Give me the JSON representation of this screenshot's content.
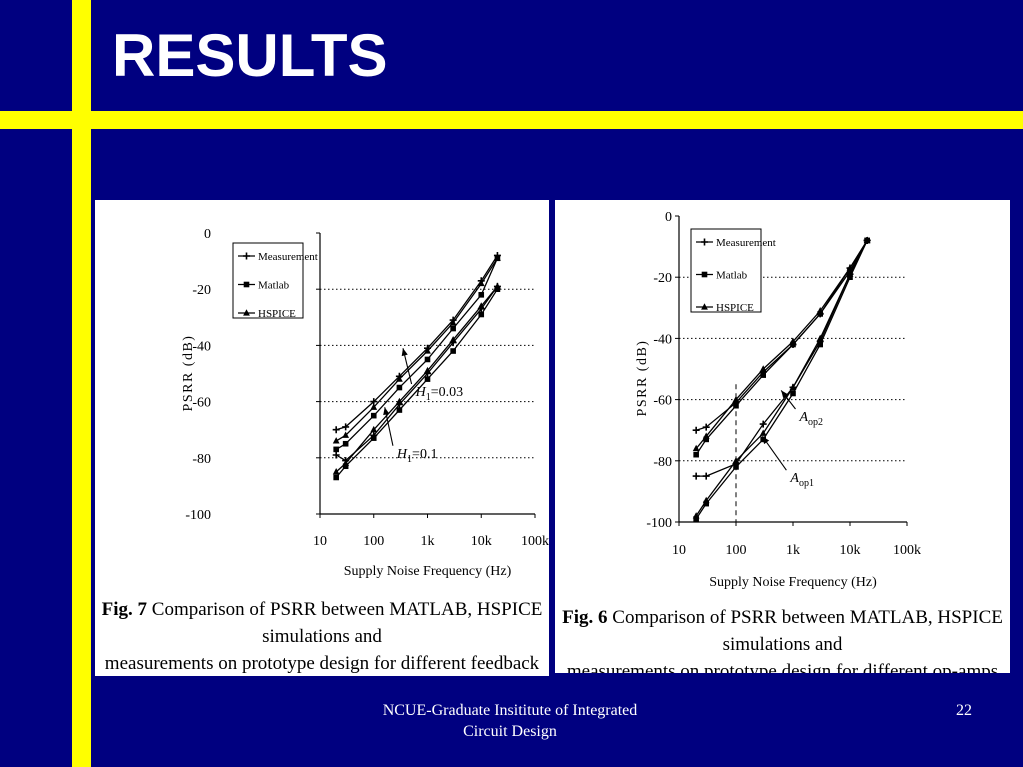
{
  "slide": {
    "title": "RESULTS",
    "footer": [
      "NCUE-Graduate Insititute of Integrated",
      "Circuit Design"
    ],
    "page_number": "22",
    "colors": {
      "background": "#000080",
      "accent_bars": "#ffff00",
      "text": "#ffffff"
    }
  },
  "figures": [
    {
      "caption_label": "Fig. 7",
      "caption_text": " Comparison of PSRR between MATLAB, HSPICE simulations and",
      "caption_line2": "measurements on prototype design for different feedback factors",
      "annotations": [
        {
          "prefix": "H",
          "sub": "1",
          "suffix": "=0.03",
          "x": 600,
          "y": -58,
          "ax": 350,
          "ay": -41
        },
        {
          "prefix": "H",
          "sub": "1",
          "suffix": "=0.1",
          "x": 270,
          "y": -80,
          "ax": 160,
          "ay": -62
        }
      ]
    },
    {
      "caption_label": "Fig. 6",
      "caption_text": " Comparison of PSRR between MATLAB, HSPICE simulations and",
      "caption_line2": "measurements on prototype design for different op-amps",
      "annotations": [
        {
          "prefix": "A",
          "sub": "op2",
          "suffix": "",
          "x": 1300,
          "y": -67,
          "ax": 620,
          "ay": -57
        },
        {
          "prefix": "A",
          "sub": "op1",
          "suffix": "",
          "x": 900,
          "y": -87,
          "ax": 290,
          "ay": -72
        }
      ]
    }
  ],
  "chart_data": [
    {
      "type": "line",
      "x_scale": "log",
      "xlim": [
        10,
        100000
      ],
      "ylim": [
        -100,
        0
      ],
      "xticks": [
        10,
        100,
        1000,
        10000,
        100000
      ],
      "xtick_labels": [
        "10",
        "100",
        "1k",
        "10k",
        "100k"
      ],
      "yticks": [
        0,
        -20,
        -40,
        -60,
        -80,
        -100
      ],
      "ytick_labels": [
        "0",
        "-20",
        "-40",
        "-60",
        "-80",
        "-100"
      ],
      "xlabel": "Supply Noise Frequency (Hz)",
      "ylabel": "PSRR (dB)",
      "grid": "horizontal dotted",
      "legend": "top-left",
      "series": [
        {
          "name": "Measurement",
          "marker": "plus",
          "x": [
            20,
            30,
            100,
            300,
            1000,
            3000,
            10000,
            20000
          ],
          "y": [
            -70,
            -69,
            -60,
            -51,
            -41,
            -31,
            -17,
            -8
          ]
        },
        {
          "name": "Matlab",
          "marker": "square",
          "x": [
            20,
            30,
            100,
            300,
            1000,
            3000,
            10000,
            20000
          ],
          "y": [
            -77,
            -75,
            -65,
            -55,
            -45,
            -34,
            -22,
            -9
          ]
        },
        {
          "name": "HSPICE",
          "marker": "triangle",
          "x": [
            20,
            30,
            100,
            300,
            1000,
            3000,
            10000,
            20000
          ],
          "y": [
            -74,
            -72,
            -62,
            -52,
            -42,
            -32,
            -18,
            -9
          ]
        },
        {
          "name": "",
          "marker": "plus",
          "x": [
            20,
            30,
            100,
            300,
            1000,
            3000,
            10000,
            20000
          ],
          "y": [
            -79,
            -81,
            -72,
            -61,
            -50,
            -39,
            -27,
            -19
          ]
        },
        {
          "name": "",
          "marker": "square",
          "x": [
            20,
            30,
            100,
            300,
            1000,
            3000,
            10000,
            20000
          ],
          "y": [
            -87,
            -83,
            -73,
            -63,
            -52,
            -42,
            -29,
            -20
          ]
        },
        {
          "name": "",
          "marker": "triangle",
          "x": [
            20,
            30,
            100,
            300,
            1000,
            3000,
            10000,
            20000
          ],
          "y": [
            -85,
            -82,
            -70,
            -60,
            -49,
            -38,
            -26,
            -19
          ]
        }
      ]
    },
    {
      "type": "line",
      "x_scale": "log",
      "xlim": [
        10,
        100000
      ],
      "ylim": [
        -100,
        0
      ],
      "xticks": [
        10,
        100,
        1000,
        10000,
        100000
      ],
      "xtick_labels": [
        "10",
        "100",
        "1k",
        "10k",
        "100k"
      ],
      "yticks": [
        0,
        -20,
        -40,
        -60,
        -80,
        -100
      ],
      "ytick_labels": [
        "0",
        "-20",
        "-40",
        "-60",
        "-80",
        "-100"
      ],
      "xlabel": "Supply Noise Frequency (Hz)",
      "ylabel": "PSRR (dB)",
      "grid": "horizontal dotted",
      "legend": "top-left",
      "vline_x": 100,
      "series": [
        {
          "name": "Measurement",
          "marker": "plus",
          "x": [
            20,
            30,
            100,
            300,
            1000,
            3000,
            10000,
            20000
          ],
          "y": [
            -70,
            -69,
            -61,
            -51,
            -42,
            -32,
            -17,
            -8
          ]
        },
        {
          "name": "Matlab",
          "marker": "square",
          "x": [
            20,
            30,
            100,
            300,
            1000,
            3000,
            10000,
            20000
          ],
          "y": [
            -78,
            -73,
            -62,
            -52,
            -42,
            -32,
            -18,
            -8
          ]
        },
        {
          "name": "HSPICE",
          "marker": "triangle",
          "x": [
            20,
            30,
            100,
            300,
            1000,
            3000,
            10000,
            20000
          ],
          "y": [
            -76,
            -72,
            -60,
            -50,
            -41,
            -31,
            -17,
            -8
          ]
        },
        {
          "name": "",
          "marker": "plus",
          "x": [
            20,
            30,
            100,
            300,
            1000,
            3000,
            10000,
            20000
          ],
          "y": [
            -85,
            -85,
            -81,
            -68,
            -56,
            -41,
            -19,
            -8
          ]
        },
        {
          "name": "",
          "marker": "square",
          "x": [
            20,
            30,
            100,
            300,
            1000,
            3000,
            10000,
            20000
          ],
          "y": [
            -99,
            -94,
            -82,
            -73,
            -58,
            -42,
            -20,
            -8
          ]
        },
        {
          "name": "",
          "marker": "triangle",
          "x": [
            20,
            30,
            100,
            300,
            1000,
            3000,
            10000,
            20000
          ],
          "y": [
            -98,
            -93,
            -80,
            -71,
            -56,
            -40,
            -19,
            -8
          ]
        }
      ]
    }
  ]
}
